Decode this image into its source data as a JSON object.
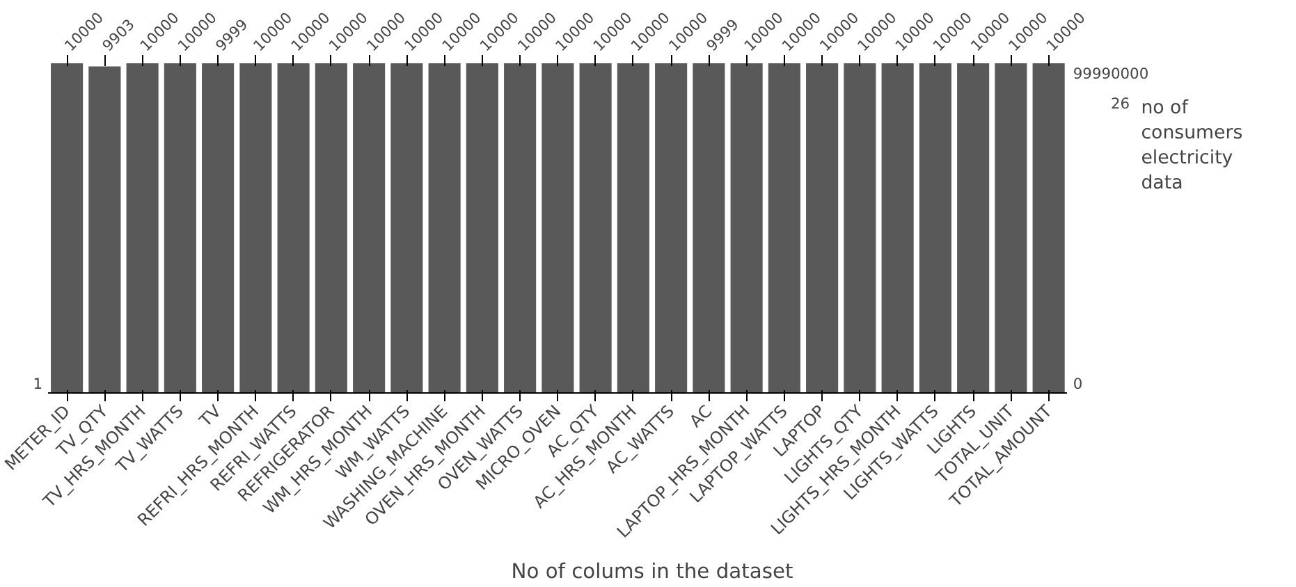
{
  "chart_data": {
    "type": "bar",
    "xlabel": "No of colums in the dataset",
    "categories": [
      "METER_ID",
      "TV_QTY",
      "TV_HRS_MONTH",
      "TV_WATTS",
      "TV",
      "REFRI_HRS_MONTH",
      "REFRI_WATTS",
      "REFRIGERATOR",
      "WM_HRS_MONTH",
      "WM_WATTS",
      "WASHING_MACHINE",
      "OVEN_HRS_MONTH",
      "OVEN_WATTS",
      "MICRO_OVEN",
      "AC_QTY",
      "AC_HRS_MONTH",
      "AC_WATTS",
      "AC",
      "LAPTOP_HRS_MONTH",
      "LAPTOP_WATTS",
      "LAPTOP",
      "LIGHTS_QTY",
      "LIGHTS_HRS_MONTH",
      "LIGHTS_WATTS",
      "LIGHTS",
      "TOTAL_UNIT",
      "TOTAL_AMOUNT"
    ],
    "values": [
      10000,
      9903,
      10000,
      10000,
      9999,
      10000,
      10000,
      10000,
      10000,
      10000,
      10000,
      10000,
      10000,
      10000,
      10000,
      10000,
      10000,
      9999,
      10000,
      10000,
      10000,
      10000,
      10000,
      10000,
      10000,
      10000,
      10000
    ],
    "color": "#595959",
    "ylim": [
      0,
      10000
    ],
    "data_labels": true,
    "tick_labels": "x",
    "grid": false,
    "annotations": [
      "1",
      "99990000",
      "26",
      "0",
      "no of consumers electricity data"
    ]
  }
}
